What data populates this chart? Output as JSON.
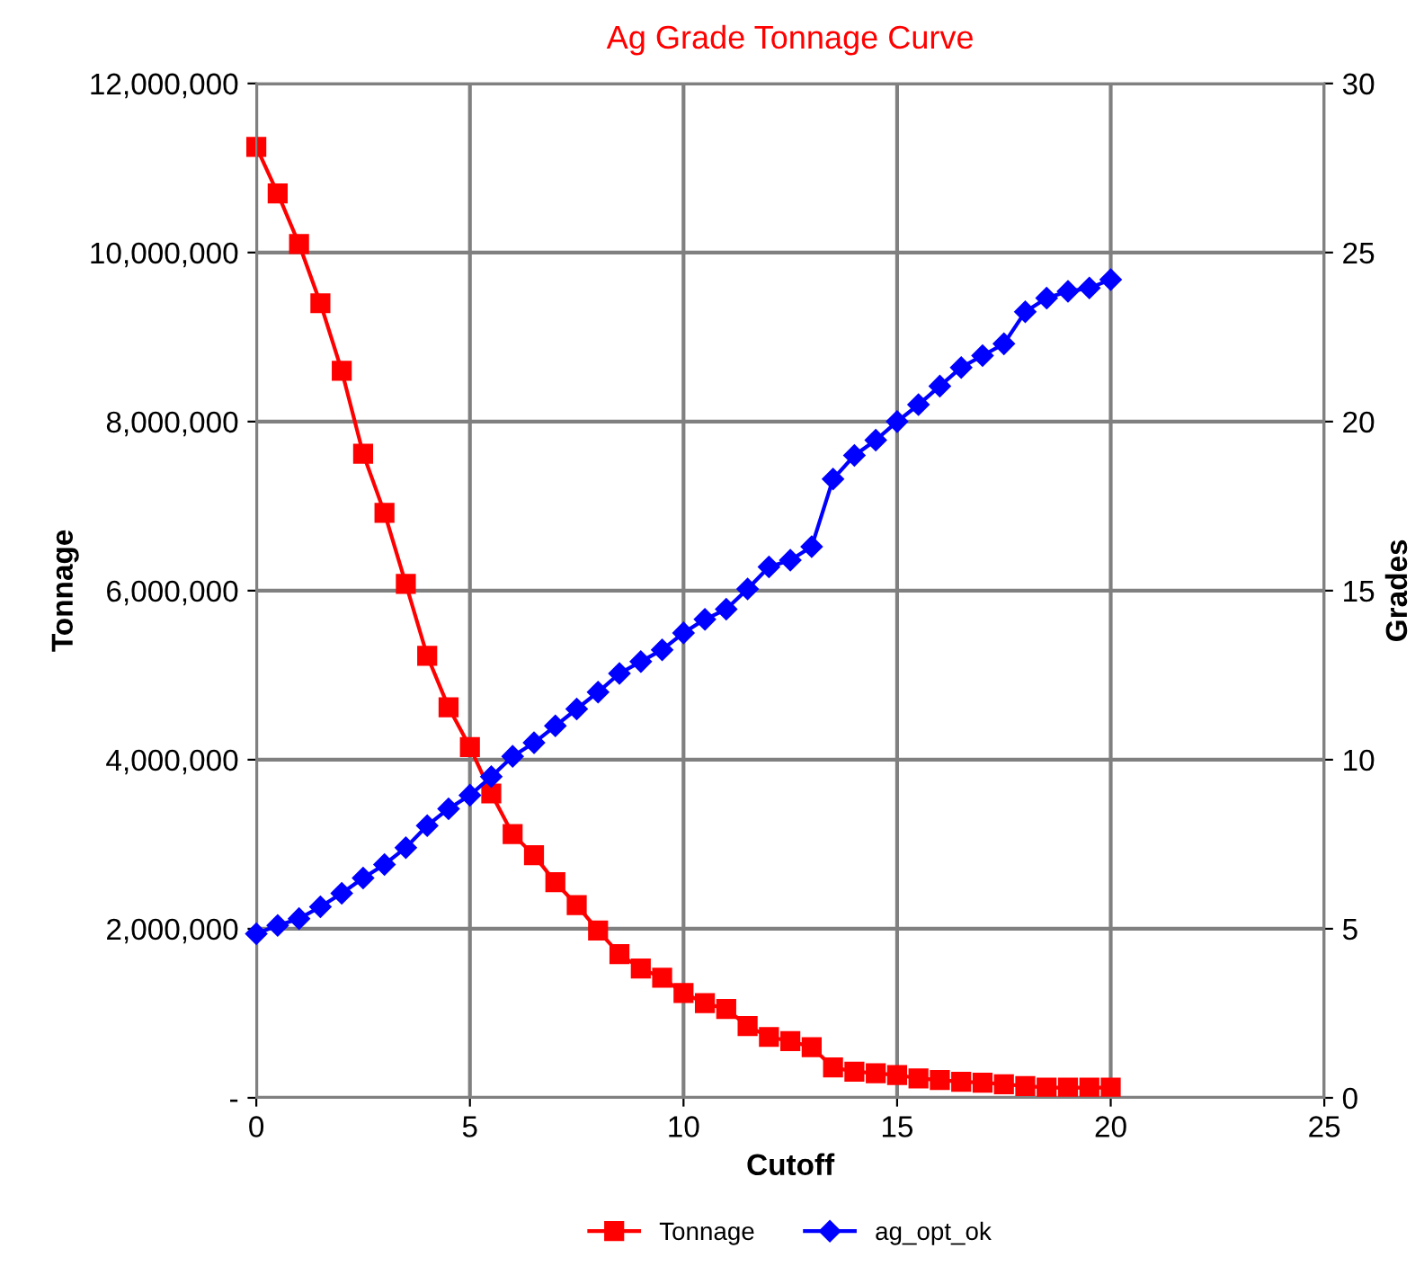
{
  "chart_data": {
    "type": "line",
    "title": "Ag Grade Tonnage Curve",
    "xlabel": "Cutoff",
    "ylabel": "Tonnage",
    "y2label": "Grades",
    "x": [
      0,
      0.5,
      1,
      1.5,
      2,
      2.5,
      3,
      3.5,
      4,
      4.5,
      5,
      5.5,
      6,
      6.5,
      7,
      7.5,
      8,
      8.5,
      9,
      9.5,
      10,
      10.5,
      11,
      11.5,
      12,
      12.5,
      13,
      13.5,
      14,
      14.5,
      15,
      15.5,
      16,
      16.5,
      17,
      17.5,
      18,
      18.5,
      19,
      19.5,
      20
    ],
    "series": [
      {
        "name": "Tonnage",
        "color": "#ff0000",
        "marker": "square",
        "values": [
          11250000,
          10700000,
          10100000,
          9400000,
          8600000,
          7620000,
          6920000,
          6080000,
          5230000,
          4620000,
          4150000,
          3600000,
          3120000,
          2870000,
          2550000,
          2280000,
          1980000,
          1700000,
          1530000,
          1420000,
          1240000,
          1120000,
          1050000,
          850000,
          720000,
          670000,
          600000,
          360000,
          310000,
          290000,
          270000,
          230000,
          210000,
          190000,
          180000,
          160000,
          140000,
          120000,
          120000,
          120000,
          120000
        ]
      },
      {
        "name": "ag_opt_ok",
        "color": "#0000ff",
        "marker": "diamond",
        "axis": "y2",
        "values": [
          4.85,
          5.1,
          5.3,
          5.65,
          6.05,
          6.5,
          6.9,
          7.4,
          8.05,
          8.55,
          8.95,
          9.5,
          10.1,
          10.5,
          11.0,
          11.5,
          12.0,
          12.55,
          12.9,
          13.25,
          13.75,
          14.15,
          14.45,
          15.05,
          15.7,
          15.9,
          16.3,
          18.3,
          19.0,
          19.45,
          20.0,
          20.5,
          21.05,
          21.6,
          21.95,
          22.3,
          23.25,
          23.65,
          23.85,
          23.95,
          24.2
        ]
      }
    ],
    "xlim": [
      0,
      25
    ],
    "xticks": [
      0,
      5,
      10,
      15,
      20,
      25
    ],
    "ylim": [
      0,
      12000000
    ],
    "yticks": [
      {
        "value": 0,
        "label": "-"
      },
      {
        "value": 2000000,
        "label": "2,000,000"
      },
      {
        "value": 4000000,
        "label": "4,000,000"
      },
      {
        "value": 6000000,
        "label": "6,000,000"
      },
      {
        "value": 8000000,
        "label": "8,000,000"
      },
      {
        "value": 10000000,
        "label": "10,000,000"
      },
      {
        "value": 12000000,
        "label": "12,000,000"
      }
    ],
    "y2lim": [
      0,
      30
    ],
    "y2ticks": [
      0,
      5,
      10,
      15,
      20,
      25,
      30
    ],
    "grid": true,
    "legend": "bottom",
    "line_style": "solid"
  }
}
